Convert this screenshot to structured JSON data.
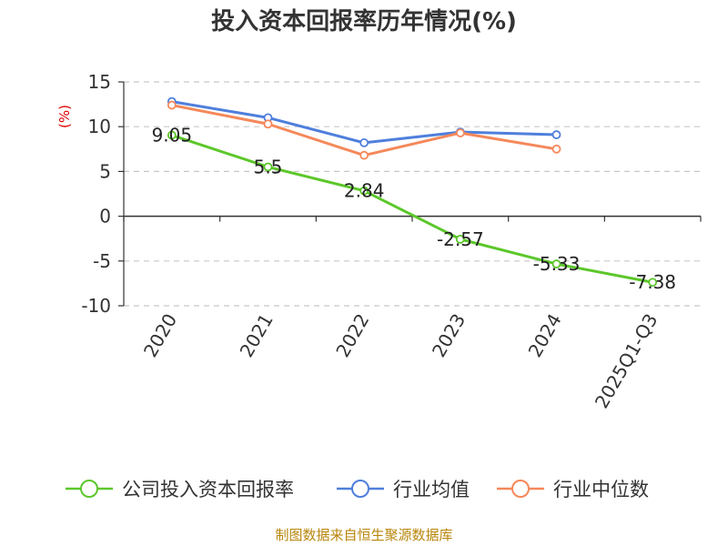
{
  "chart_data": {
    "type": "line",
    "title": "投入资本回报率历年情况(%)",
    "ylabel": "(%)",
    "xlabel": "",
    "categories": [
      "2020",
      "2021",
      "2022",
      "2023",
      "2024",
      "2025Q1-Q3"
    ],
    "ylim": [
      -10,
      15
    ],
    "yticks": [
      15,
      10,
      5,
      0,
      -5,
      -10
    ],
    "ytick_labels": [
      "15",
      "10",
      "5",
      "0",
      "-5",
      "-10"
    ],
    "grid": true,
    "legend_position": "bottom",
    "series": [
      {
        "name": "公司投入资本回报率",
        "color": "#5cc72a",
        "values": [
          9.05,
          5.5,
          2.84,
          -2.57,
          -5.33,
          -7.38
        ],
        "labels": [
          "9.05",
          "5.5",
          "2.84",
          "-2.57",
          "-5.33",
          "-7.38"
        ]
      },
      {
        "name": "行业均值",
        "color": "#4f7fdc",
        "values": [
          12.8,
          11.0,
          8.2,
          9.4,
          9.1,
          null
        ]
      },
      {
        "name": "行业中位数",
        "color": "#f5885a",
        "values": [
          12.4,
          10.3,
          6.8,
          9.3,
          7.5,
          null
        ]
      }
    ],
    "source": "制图数据来自恒生聚源数据库"
  }
}
